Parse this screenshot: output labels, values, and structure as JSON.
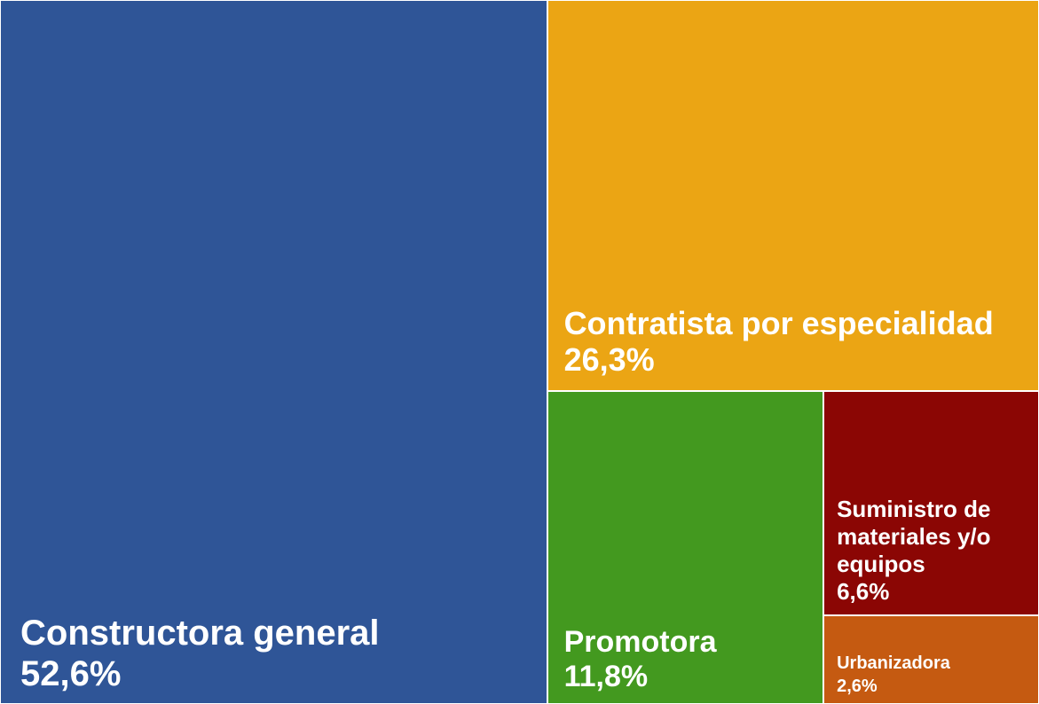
{
  "chart_data": {
    "type": "treemap",
    "categories": [
      "Constructora general",
      "Contratista por especialidad",
      "Promotora",
      "Suministro de materiales y/o equipos",
      "Urbanizadora"
    ],
    "values": [
      52.6,
      26.3,
      11.8,
      6.6,
      2.6
    ],
    "value_labels": [
      "52,6%",
      "26,3%",
      "11,8%",
      "6,6%",
      "2,6%"
    ],
    "colors": [
      "#2f5597",
      "#eba514",
      "#43991f",
      "#8b0604",
      "#c55a11"
    ]
  }
}
